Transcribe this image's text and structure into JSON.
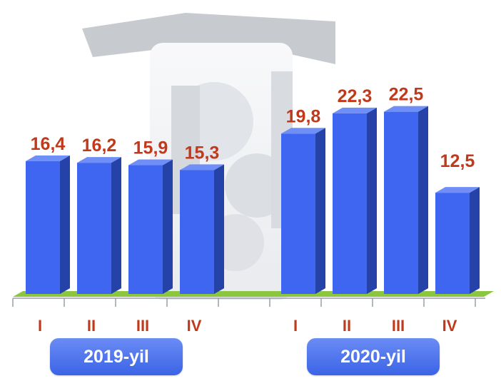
{
  "chart_data": {
    "type": "bar",
    "groups": [
      {
        "label": "2019-yil",
        "categories": [
          "I",
          "II",
          "III",
          "IV"
        ],
        "values": [
          16.4,
          16.2,
          15.9,
          15.3
        ],
        "value_labels": [
          "16,4",
          "16,2",
          "15,9",
          "15,3"
        ]
      },
      {
        "label": "2020-yil",
        "categories": [
          "I",
          "II",
          "III",
          "IV"
        ],
        "values": [
          19.8,
          22.3,
          22.5,
          12.5
        ],
        "value_labels": [
          "19,8",
          "22,3",
          "22,5",
          "12,5"
        ]
      }
    ],
    "ylim": [
      0,
      25
    ],
    "grid": false,
    "legend": "none",
    "colors": {
      "bar_front": "#3f66f0",
      "bar_side": "#2442a8",
      "bar_top": "#6f8ff7",
      "floor": "#8cc63f",
      "value_label": "#c0391b",
      "badge": "#4a70ee"
    }
  }
}
